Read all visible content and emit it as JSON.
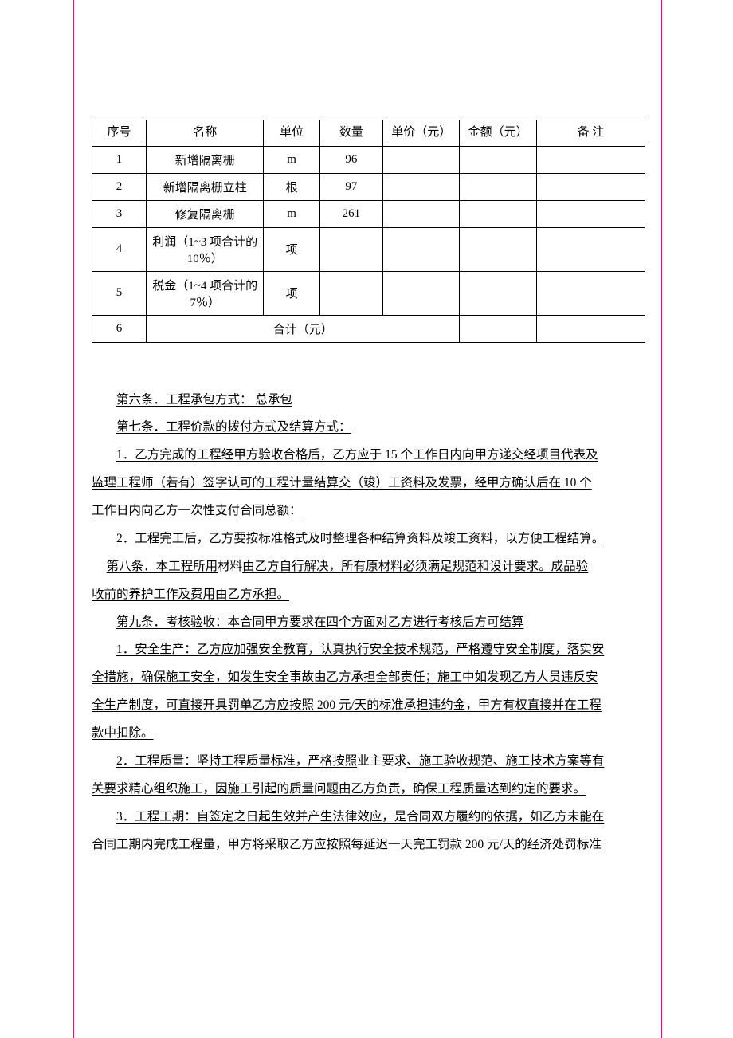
{
  "table": {
    "headers": {
      "seq": "序号",
      "name": "名称",
      "unit": "单位",
      "qty": "数量",
      "price": "单价（元）",
      "amount": "金额（元）",
      "note": "备 注"
    },
    "rows": [
      {
        "seq": "1",
        "name": "新增隔离栅",
        "unit": "m",
        "qty": "96",
        "price": "",
        "amount": "",
        "note": ""
      },
      {
        "seq": "2",
        "name": "新增隔离栅立柱",
        "unit": "根",
        "qty": "97",
        "price": "",
        "amount": "",
        "note": ""
      },
      {
        "seq": "3",
        "name": "修复隔离栅",
        "unit": "m",
        "qty": "261",
        "price": "",
        "amount": "",
        "note": ""
      },
      {
        "seq": "4",
        "name": "利润（1~3 项合计的 10％）",
        "unit": "项",
        "qty": "",
        "price": "",
        "amount": "",
        "note": ""
      },
      {
        "seq": "5",
        "name": "税金（1~4 项合计的 7％）",
        "unit": "项",
        "qty": "",
        "price": "",
        "amount": "",
        "note": ""
      }
    ],
    "total_row": {
      "seq": "6",
      "label": "合计（元）",
      "amount": "",
      "note": ""
    }
  },
  "paragraphs": {
    "p1": "第六条．工程承包方式： 总承包",
    "p2": "第七条．工程价款的拨付方式及结算方式：",
    "p3a": "1．乙方完成的工程经甲方验收合格后，乙方应于 15 个工作日内向甲方递交经项目代表及",
    "p3b": "监理工程师（若有）签字认可的工程计量结算交（竣）工资料及发票，经甲方确认后在 10 个",
    "p3c": "工作日内向乙方一次性支付",
    "p3c_plain": "合同总额",
    "p3c_tail": "：   ",
    "p4": "2．工程完工后，乙方要按标准格式及时整理各种结算资料及竣工资料，以方便工程结算。",
    "p5a": "第八条．本工程所用",
    "p5a_plain": "材料",
    "p5b": "由乙方自行解决，所有原材料必须满足规范和设计要求。成品验",
    "p5c": "收前的养护工作及费用由乙方承担。",
    "p6": "第九条．考核验收：本合同甲方要求在四个方面对乙方进行考核后方可结算",
    "p7a": "1．安全生产：乙方应加强安全教育，认真执行安全技术规范，严格遵守安全制度，落实安",
    "p7b": "全措施，确保施工安全，如发生安全事故由乙方承担全部责任；施工中如发现乙方人员违反安",
    "p7c": "全生产制度，可直接开具罚单乙方应按照 200 元/天的标准承担违约金，甲方有权直接并在工程",
    "p7d": "款中扣除。",
    "p8a": "2．工程质量：坚持工程质量标准，严格按照",
    "p8a_plain": "业主要求",
    "p8b": "、施工验收规范、施工技术方案等有",
    "p8c": "关要求精心组织施工，因施工引起的质量问题由乙方负责，确保工程质量达到约定的要求。",
    "p9a": "3．工程工期：自签定之日起生效并产生法律效应，是合同双方履约的依据，如乙方未能在",
    "p9b": "合同工期内完成工程量，甲方将采取乙方应按照每延迟一天完工罚款 200 元/天的经济处罚标准"
  }
}
